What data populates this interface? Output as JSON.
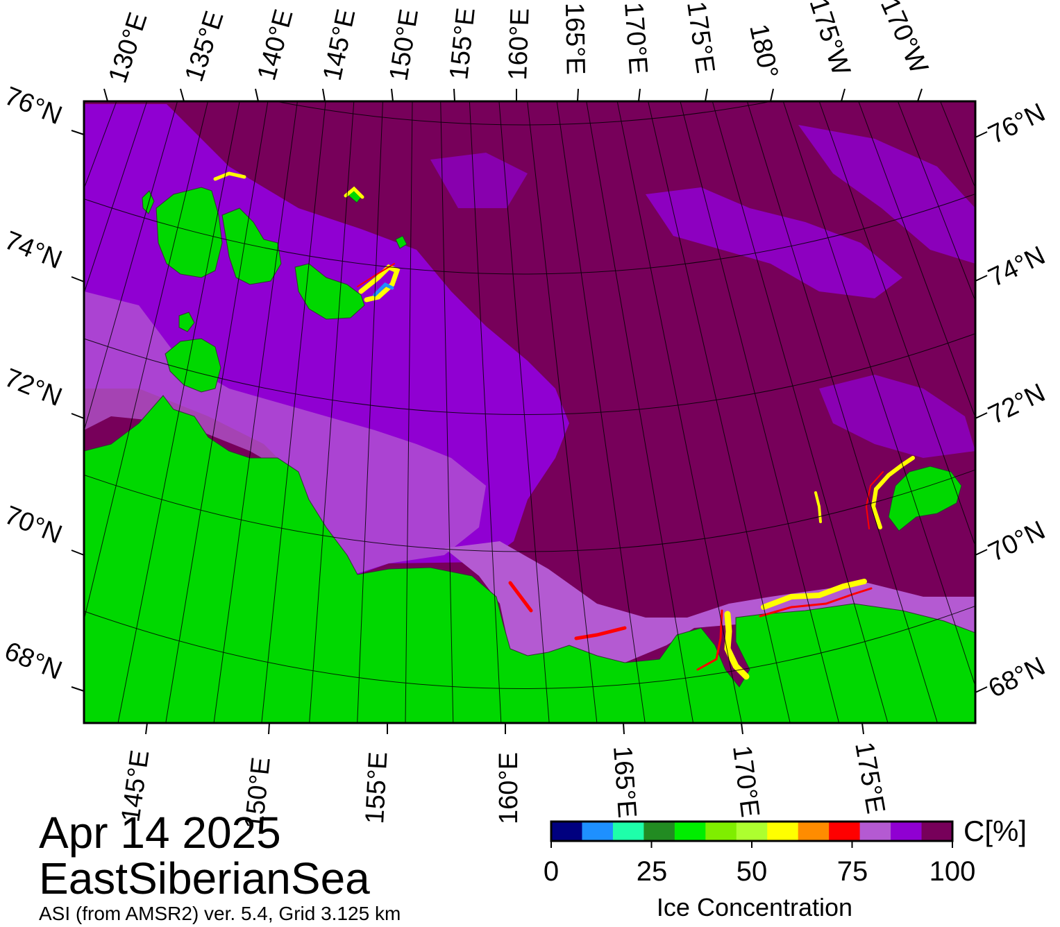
{
  "title": {
    "date": "Apr 14 2025",
    "region": "EastSiberianSea",
    "source": "ASI (from AMSR2) ver. 5.4,  Grid 3.125 km"
  },
  "colors": {
    "ice_100": "#77005a",
    "ice_95": "#9000d2",
    "ice_90": "#b45ad2",
    "land": "#00d800",
    "land_mask_grey": "#7f7f7f",
    "frame": "#000000"
  },
  "top_lon_labels": [
    "130°E",
    "135°E",
    "140°E",
    "145°E",
    "150°E",
    "155°E",
    "160°E",
    "165°E",
    "170°E",
    "175°E",
    "180°",
    "175°W",
    "170°W"
  ],
  "bottom_lon_labels": [
    "145°E",
    "150°E",
    "155°E",
    "160°E",
    "165°E",
    "170°E",
    "175°E"
  ],
  "left_lat_labels": [
    "76°N",
    "74°N",
    "72°N",
    "70°N",
    "68°N"
  ],
  "right_lat_labels": [
    "76°N",
    "74°N",
    "72°N",
    "70°N",
    "68°N"
  ],
  "colorbar": {
    "colors": [
      "#00007f",
      "#1e90ff",
      "#1effaa",
      "#228b22",
      "#00ee00",
      "#7fee00",
      "#adff2f",
      "#ffff00",
      "#ff8c00",
      "#ff0000",
      "#b45ad2",
      "#9000d2",
      "#77005a"
    ],
    "ticks": [
      "0",
      "25",
      "50",
      "75",
      "100"
    ],
    "unit": "C[%]",
    "title": "Ice Concentration"
  }
}
